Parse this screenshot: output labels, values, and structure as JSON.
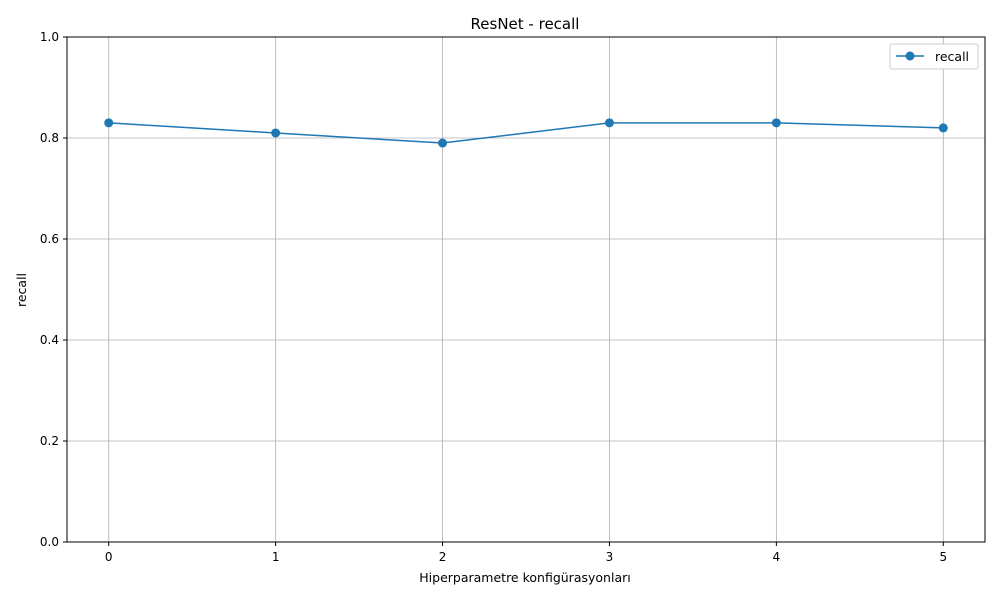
{
  "chart_data": {
    "type": "line",
    "title": "ResNet - recall",
    "xlabel": "Hiperparametre konfigürasyonları",
    "ylabel": "recall",
    "x": [
      0,
      1,
      2,
      3,
      4,
      5
    ],
    "series": [
      {
        "name": "recall",
        "values": [
          0.83,
          0.81,
          0.79,
          0.83,
          0.83,
          0.82
        ]
      }
    ],
    "xlim": [
      -0.25,
      5.25
    ],
    "ylim": [
      0.0,
      1.0
    ],
    "xticks": [
      "0",
      "1",
      "2",
      "3",
      "4",
      "5"
    ],
    "yticks": [
      "0.0",
      "0.2",
      "0.4",
      "0.6",
      "0.8",
      "1.0"
    ],
    "grid": true,
    "legend": "top-right",
    "color": "#1f77b4"
  }
}
